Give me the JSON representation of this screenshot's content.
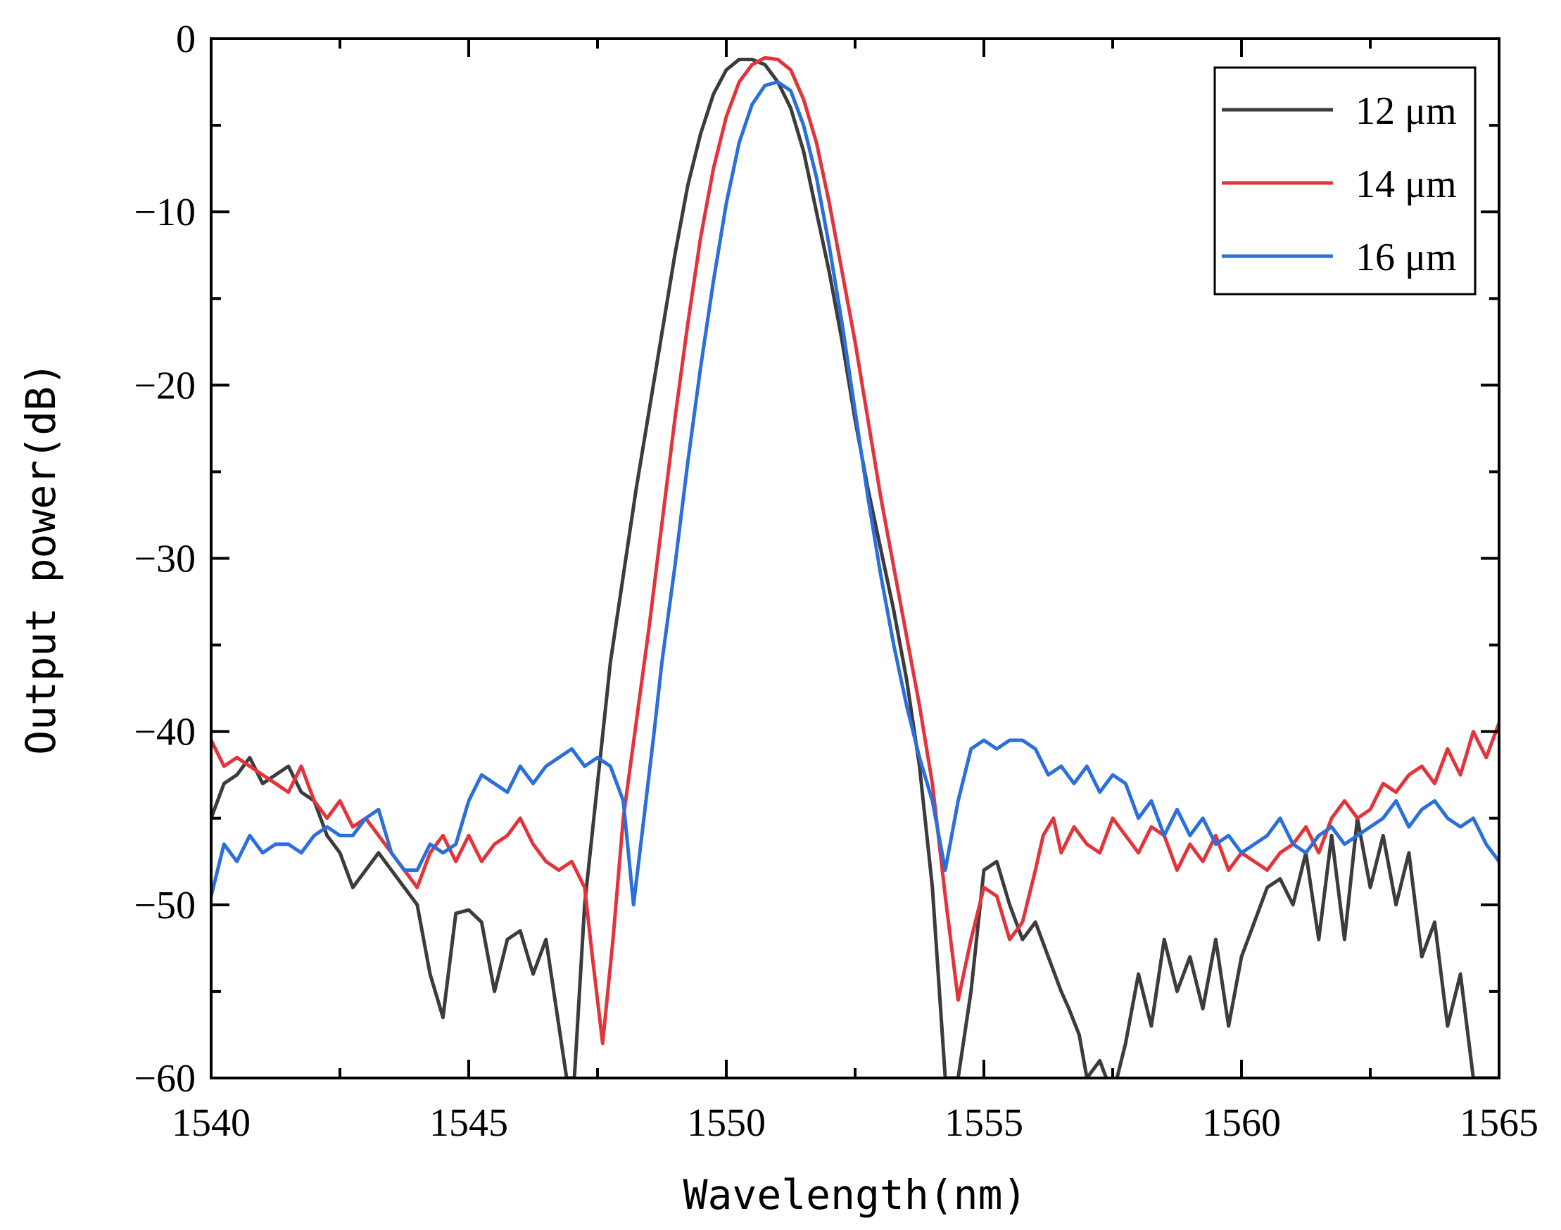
{
  "chart_data": {
    "type": "line",
    "title": "",
    "xlabel": "Wavelength(nm)",
    "ylabel": "Output power(dB)",
    "xlim": [
      1540,
      1565
    ],
    "ylim": [
      -60,
      0
    ],
    "xticks": [
      1540,
      1545,
      1550,
      1555,
      1560,
      1565
    ],
    "yticks": [
      0,
      -10,
      -20,
      -30,
      -40,
      -50,
      -60
    ],
    "xtick_labels": [
      "1540",
      "1545",
      "1550",
      "1555",
      "1560",
      "1565"
    ],
    "ytick_labels": [
      "0",
      "−10",
      "−20",
      "−30",
      "−40",
      "−50",
      "−60"
    ],
    "legend_position": "top-right",
    "grid": false,
    "series": [
      {
        "name": "12 μm",
        "color": "#3c3c3c",
        "x": [
          1540.0,
          1540.25,
          1540.5,
          1540.75,
          1541.0,
          1541.25,
          1541.5,
          1541.75,
          1542.0,
          1542.25,
          1542.5,
          1542.75,
          1543.0,
          1543.25,
          1543.5,
          1543.75,
          1544.0,
          1544.25,
          1544.5,
          1544.75,
          1545.0,
          1545.25,
          1545.5,
          1545.75,
          1546.0,
          1546.25,
          1546.5,
          1546.75,
          1546.9,
          1547.05,
          1547.25,
          1547.5,
          1547.75,
          1548.0,
          1548.25,
          1548.5,
          1548.75,
          1549.0,
          1549.25,
          1549.5,
          1549.75,
          1550.0,
          1550.25,
          1550.5,
          1550.75,
          1551.0,
          1551.25,
          1551.5,
          1551.75,
          1552.0,
          1552.25,
          1552.5,
          1552.75,
          1553.0,
          1553.25,
          1553.5,
          1553.75,
          1554.0,
          1554.25,
          1554.5,
          1554.75,
          1555.0,
          1555.25,
          1555.5,
          1555.75,
          1556.0,
          1556.25,
          1556.5,
          1556.65,
          1556.85,
          1557.0,
          1557.25,
          1557.5,
          1557.75,
          1558.0,
          1558.25,
          1558.5,
          1558.75,
          1559.0,
          1559.25,
          1559.5,
          1559.75,
          1560.0,
          1560.25,
          1560.5,
          1560.75,
          1561.0,
          1561.25,
          1561.5,
          1561.75,
          1562.0,
          1562.25,
          1562.5,
          1562.75,
          1563.0,
          1563.25,
          1563.5,
          1563.75,
          1564.0,
          1564.25,
          1564.5,
          1564.75,
          1565.0
        ],
        "y": [
          -45,
          -43,
          -42.5,
          -41.5,
          -43,
          -42.5,
          -42,
          -43.5,
          -44,
          -46,
          -47,
          -49,
          -48,
          -47,
          -48,
          -49,
          -50,
          -54,
          -56.5,
          -50.5,
          -50.3,
          -51,
          -55,
          -52,
          -51.5,
          -54,
          -52,
          -57,
          -60,
          -60,
          -50,
          -43,
          -36,
          -31,
          -26,
          -21.5,
          -17,
          -12.5,
          -8.5,
          -5.5,
          -3.2,
          -1.8,
          -1.2,
          -1.2,
          -1.5,
          -2.5,
          -4,
          -6.5,
          -10,
          -13.5,
          -17.5,
          -22,
          -26,
          -29.5,
          -33,
          -37,
          -42,
          -49,
          -60,
          -60,
          -55,
          -48,
          -47.5,
          -50,
          -52,
          -51,
          -53,
          -55,
          -56,
          -57.5,
          -60,
          -59,
          -61,
          -58,
          -54,
          -57,
          -52,
          -55,
          -53,
          -56,
          -52,
          -57,
          -53,
          -51,
          -49,
          -48.5,
          -50,
          -47,
          -52,
          -46,
          -52,
          -45,
          -49,
          -46,
          -50,
          -47,
          -53,
          -51,
          -57,
          -54,
          -60,
          -60,
          -60
        ]
      },
      {
        "name": "14 μm",
        "color": "#e3333b",
        "x": [
          1540.0,
          1540.25,
          1540.5,
          1540.75,
          1541.0,
          1541.25,
          1541.5,
          1541.75,
          1542.0,
          1542.25,
          1542.5,
          1542.75,
          1543.0,
          1543.25,
          1543.5,
          1543.75,
          1544.0,
          1544.25,
          1544.5,
          1544.75,
          1545.0,
          1545.25,
          1545.5,
          1545.75,
          1546.0,
          1546.25,
          1546.5,
          1546.75,
          1547.0,
          1547.25,
          1547.4,
          1547.6,
          1547.8,
          1548.0,
          1548.25,
          1548.5,
          1548.75,
          1549.0,
          1549.25,
          1549.5,
          1549.75,
          1550.0,
          1550.25,
          1550.5,
          1550.75,
          1551.0,
          1551.25,
          1551.5,
          1551.75,
          1552.0,
          1552.25,
          1552.5,
          1552.75,
          1553.0,
          1553.25,
          1553.5,
          1553.75,
          1554.0,
          1554.25,
          1554.5,
          1554.75,
          1555.0,
          1555.25,
          1555.5,
          1555.75,
          1556.0,
          1556.15,
          1556.35,
          1556.5,
          1556.75,
          1557.0,
          1557.25,
          1557.5,
          1557.75,
          1558.0,
          1558.25,
          1558.5,
          1558.75,
          1559.0,
          1559.25,
          1559.5,
          1559.75,
          1560.0,
          1560.25,
          1560.5,
          1560.75,
          1561.0,
          1561.25,
          1561.5,
          1561.75,
          1562.0,
          1562.25,
          1562.5,
          1562.75,
          1563.0,
          1563.25,
          1563.5,
          1563.75,
          1564.0,
          1564.25,
          1564.5,
          1564.75,
          1565.0
        ],
        "y": [
          -40.5,
          -42,
          -41.5,
          -42,
          -42.5,
          -43,
          -43.5,
          -42,
          -44,
          -45,
          -44,
          -45.5,
          -45,
          -46,
          -47,
          -48,
          -49,
          -47,
          -46,
          -47.5,
          -46,
          -47.5,
          -46.5,
          -46,
          -45,
          -46.5,
          -47.5,
          -48,
          -47.5,
          -49,
          -53,
          -58,
          -52,
          -45,
          -39.5,
          -34,
          -28,
          -22,
          -16.5,
          -11.5,
          -7.5,
          -4.5,
          -2.5,
          -1.5,
          -1.1,
          -1.2,
          -1.8,
          -3.5,
          -6,
          -9.5,
          -13.5,
          -17.5,
          -22,
          -26.5,
          -30.5,
          -34.5,
          -38.5,
          -43,
          -49.5,
          -55.5,
          -52,
          -49,
          -49.5,
          -52,
          -51,
          -48,
          -46,
          -45,
          -47,
          -45.5,
          -46.5,
          -47,
          -45,
          -46,
          -47,
          -45.5,
          -46,
          -48,
          -46.5,
          -47.5,
          -46,
          -48,
          -47,
          -47.5,
          -48,
          -47,
          -46.5,
          -45.5,
          -47,
          -45,
          -44,
          -45,
          -44.5,
          -43,
          -43.5,
          -42.5,
          -42,
          -43,
          -41,
          -42.5,
          -40,
          -41.5,
          -39.5
        ]
      },
      {
        "name": "16 μm",
        "color": "#2a6fdb",
        "x": [
          1540.0,
          1540.25,
          1540.5,
          1540.75,
          1541.0,
          1541.25,
          1541.5,
          1541.75,
          1542.0,
          1542.25,
          1542.5,
          1542.75,
          1543.0,
          1543.25,
          1543.5,
          1543.75,
          1544.0,
          1544.25,
          1544.5,
          1544.75,
          1545.0,
          1545.25,
          1545.5,
          1545.75,
          1546.0,
          1546.25,
          1546.5,
          1546.75,
          1547.0,
          1547.25,
          1547.5,
          1547.75,
          1548.0,
          1548.2,
          1548.4,
          1548.6,
          1548.75,
          1549.0,
          1549.25,
          1549.5,
          1549.75,
          1550.0,
          1550.25,
          1550.5,
          1550.75,
          1551.0,
          1551.25,
          1551.5,
          1551.75,
          1552.0,
          1552.25,
          1552.5,
          1552.75,
          1553.0,
          1553.25,
          1553.5,
          1553.75,
          1554.0,
          1554.25,
          1554.5,
          1554.75,
          1555.0,
          1555.25,
          1555.5,
          1555.75,
          1556.0,
          1556.25,
          1556.5,
          1556.75,
          1557.0,
          1557.25,
          1557.5,
          1557.75,
          1558.0,
          1558.25,
          1558.5,
          1558.75,
          1559.0,
          1559.25,
          1559.5,
          1559.75,
          1560.0,
          1560.25,
          1560.5,
          1560.75,
          1561.0,
          1561.25,
          1561.5,
          1561.75,
          1562.0,
          1562.25,
          1562.5,
          1562.75,
          1563.0,
          1563.25,
          1563.5,
          1563.75,
          1564.0,
          1564.25,
          1564.5,
          1564.75,
          1565.0
        ],
        "y": [
          -49.5,
          -46.5,
          -47.5,
          -46,
          -47,
          -46.5,
          -46.5,
          -47,
          -46,
          -45.5,
          -46,
          -46,
          -45,
          -44.5,
          -47,
          -48,
          -48,
          -46.5,
          -47,
          -46.5,
          -44,
          -42.5,
          -43,
          -43.5,
          -42,
          -43,
          -42,
          -41.5,
          -41,
          -42,
          -41.5,
          -42,
          -44,
          -50,
          -45,
          -40,
          -36,
          -30.5,
          -24.5,
          -19,
          -14,
          -9.5,
          -6,
          -3.8,
          -2.7,
          -2.5,
          -3,
          -5,
          -8,
          -12,
          -16.5,
          -21.5,
          -26.5,
          -31,
          -35,
          -38.5,
          -41.5,
          -44,
          -48,
          -44,
          -41,
          -40.5,
          -41,
          -40.5,
          -40.5,
          -41,
          -42.5,
          -42,
          -43,
          -42,
          -43.5,
          -42.5,
          -43,
          -45,
          -44,
          -46,
          -44.5,
          -46,
          -45,
          -46.5,
          -46,
          -47,
          -46.5,
          -46,
          -45,
          -46.5,
          -47,
          -46,
          -45.5,
          -46.5,
          -46,
          -45.5,
          -45,
          -44,
          -45.5,
          -44.5,
          -44,
          -45,
          -45.5,
          -45,
          -46.5,
          -47.5
        ]
      }
    ]
  }
}
